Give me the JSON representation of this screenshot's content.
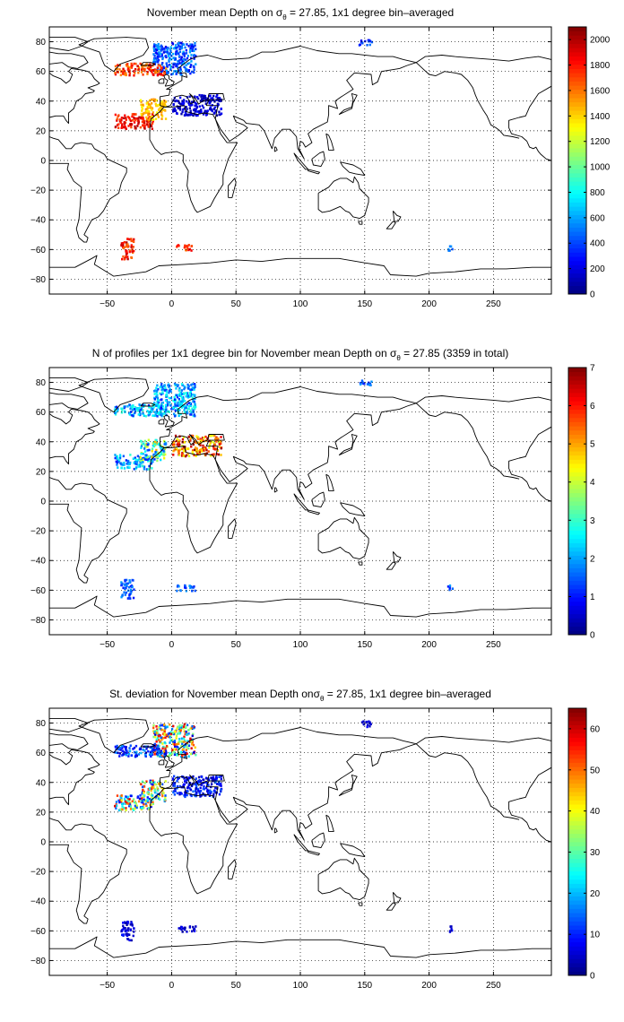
{
  "chart_data": [
    {
      "type": "heatmap",
      "title_parts": [
        "November mean Depth on ",
        "σ",
        "θ",
        " = 27.85, 1x1 degree bin–averaged"
      ],
      "xlim": [
        -95,
        295
      ],
      "ylim": [
        -90,
        90
      ],
      "xticks": [
        -50,
        0,
        50,
        100,
        150,
        200,
        250
      ],
      "yticks": [
        -80,
        -60,
        -40,
        -20,
        0,
        20,
        40,
        60,
        80
      ],
      "grid": true,
      "colorbar": {
        "min": 0,
        "max": 2100,
        "ticks": [
          0,
          200,
          400,
          600,
          800,
          1000,
          1200,
          1400,
          1600,
          1800,
          2000
        ]
      },
      "clusters": [
        {
          "lon": [
            -15,
            18
          ],
          "lat": [
            58,
            80
          ],
          "range": [
            200,
            650
          ]
        },
        {
          "lon": [
            -45,
            -5
          ],
          "lat": [
            58,
            66
          ],
          "range": [
            1500,
            1950
          ]
        },
        {
          "lon": [
            -45,
            -15
          ],
          "lat": [
            22,
            32
          ],
          "range": [
            1650,
            2000
          ]
        },
        {
          "lon": [
            -25,
            -5
          ],
          "lat": [
            28,
            42
          ],
          "range": [
            1300,
            1600
          ]
        },
        {
          "lon": [
            0,
            38
          ],
          "lat": [
            31,
            45
          ],
          "range": [
            50,
            300
          ]
        },
        {
          "lon": [
            145,
            155
          ],
          "lat": [
            78,
            82
          ],
          "range": [
            200,
            500
          ]
        },
        {
          "lon": [
            -40,
            -30
          ],
          "lat": [
            -66,
            -52
          ],
          "range": [
            1600,
            2000
          ]
        },
        {
          "lon": [
            3,
            18
          ],
          "lat": [
            -60,
            -56
          ],
          "range": [
            1600,
            1900
          ]
        },
        {
          "lon": [
            214,
            218
          ],
          "lat": [
            -60,
            -56
          ],
          "range": [
            400,
            600
          ]
        }
      ]
    },
    {
      "type": "heatmap",
      "title_parts": [
        "N of profiles per 1x1 degree bin for November mean Depth on ",
        "σ",
        "θ",
        " = 27.85 (3359 in total)"
      ],
      "xlim": [
        -95,
        295
      ],
      "ylim": [
        -90,
        90
      ],
      "xticks": [
        -50,
        0,
        50,
        100,
        150,
        200,
        250
      ],
      "yticks": [
        -80,
        -60,
        -40,
        -20,
        0,
        20,
        40,
        60,
        80
      ],
      "grid": true,
      "colorbar": {
        "min": 0,
        "max": 7,
        "ticks": [
          0,
          1,
          2,
          3,
          4,
          5,
          6,
          7
        ]
      },
      "clusters": [
        {
          "lon": [
            -15,
            18
          ],
          "lat": [
            58,
            80
          ],
          "range": [
            1,
            3
          ]
        },
        {
          "lon": [
            -45,
            -5
          ],
          "lat": [
            58,
            66
          ],
          "range": [
            1,
            3
          ]
        },
        {
          "lon": [
            -45,
            -15
          ],
          "lat": [
            22,
            32
          ],
          "range": [
            1,
            3
          ]
        },
        {
          "lon": [
            -25,
            -5
          ],
          "lat": [
            28,
            42
          ],
          "range": [
            1,
            5
          ]
        },
        {
          "lon": [
            0,
            38
          ],
          "lat": [
            31,
            45
          ],
          "range": [
            4,
            7
          ]
        },
        {
          "lon": [
            145,
            155
          ],
          "lat": [
            78,
            82
          ],
          "range": [
            1,
            2
          ]
        },
        {
          "lon": [
            -40,
            -30
          ],
          "lat": [
            -66,
            -52
          ],
          "range": [
            1,
            2
          ]
        },
        {
          "lon": [
            3,
            18
          ],
          "lat": [
            -60,
            -56
          ],
          "range": [
            1,
            2
          ]
        },
        {
          "lon": [
            214,
            218
          ],
          "lat": [
            -60,
            -56
          ],
          "range": [
            1,
            2
          ]
        }
      ]
    },
    {
      "type": "heatmap",
      "title_parts": [
        "St. deviation for November mean Depth on",
        "σ",
        "θ",
        " = 27.85, 1x1 degree bin–averaged"
      ],
      "xlim": [
        -95,
        295
      ],
      "ylim": [
        -90,
        90
      ],
      "xticks": [
        -50,
        0,
        50,
        100,
        150,
        200,
        250
      ],
      "yticks": [
        -80,
        -60,
        -40,
        -20,
        0,
        20,
        40,
        60,
        80
      ],
      "grid": true,
      "colorbar": {
        "min": 0,
        "max": 65,
        "ticks": [
          0,
          10,
          20,
          30,
          40,
          50,
          60
        ]
      },
      "clusters": [
        {
          "lon": [
            -15,
            18
          ],
          "lat": [
            58,
            80
          ],
          "range": [
            5,
            60
          ]
        },
        {
          "lon": [
            -45,
            -5
          ],
          "lat": [
            58,
            66
          ],
          "range": [
            3,
            20
          ]
        },
        {
          "lon": [
            -45,
            -15
          ],
          "lat": [
            22,
            32
          ],
          "range": [
            5,
            60
          ]
        },
        {
          "lon": [
            -25,
            -5
          ],
          "lat": [
            28,
            42
          ],
          "range": [
            5,
            55
          ]
        },
        {
          "lon": [
            0,
            38
          ],
          "lat": [
            31,
            45
          ],
          "range": [
            3,
            15
          ]
        },
        {
          "lon": [
            145,
            155
          ],
          "lat": [
            78,
            82
          ],
          "range": [
            3,
            8
          ]
        },
        {
          "lon": [
            -40,
            -30
          ],
          "lat": [
            -66,
            -52
          ],
          "range": [
            2,
            10
          ]
        },
        {
          "lon": [
            3,
            18
          ],
          "lat": [
            -60,
            -56
          ],
          "range": [
            2,
            8
          ]
        },
        {
          "lon": [
            214,
            218
          ],
          "lat": [
            -60,
            -56
          ],
          "range": [
            2,
            8
          ]
        }
      ]
    }
  ]
}
